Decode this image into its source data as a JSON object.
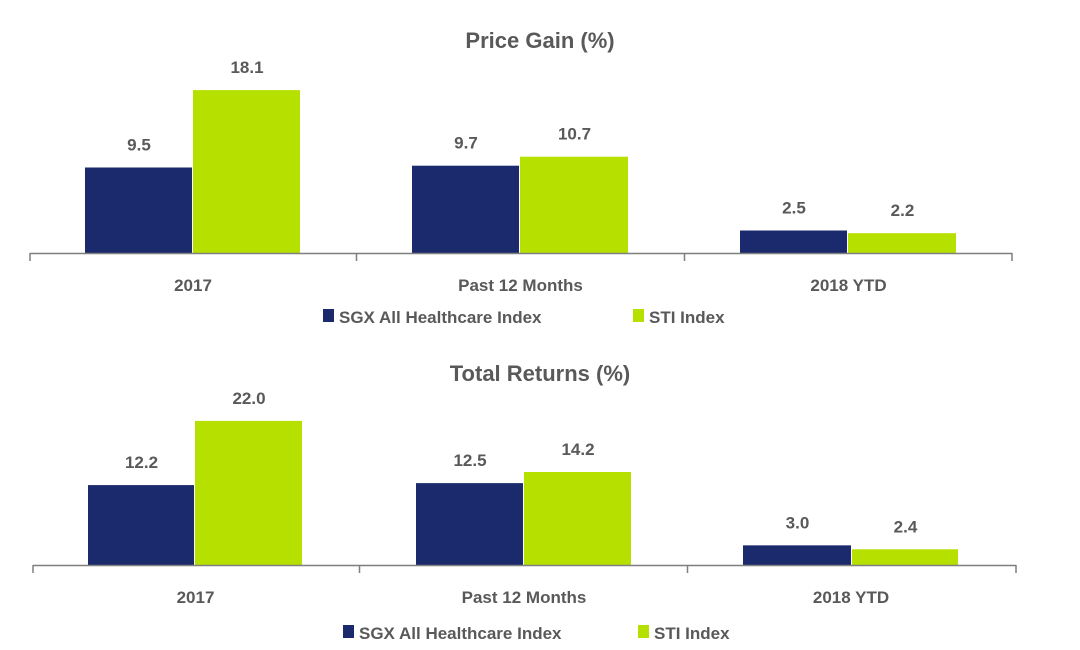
{
  "colors": {
    "series1": "#1a2a6c",
    "series2": "#b5e000",
    "text": "#595959",
    "axis": "#7f7f7f"
  },
  "chart_data": [
    {
      "type": "bar",
      "title": "Price Gain (%)",
      "categories": [
        "2017",
        "Past 12 Months",
        "2018 YTD"
      ],
      "series": [
        {
          "name": "SGX All Healthcare Index",
          "values": [
            9.5,
            9.7,
            2.5
          ],
          "labels": [
            "9.5",
            "9.7",
            "2.5"
          ]
        },
        {
          "name": "STI Index",
          "values": [
            18.1,
            10.7,
            2.2
          ],
          "labels": [
            "18.1",
            "10.7",
            "2.2"
          ]
        }
      ],
      "ylim": [
        0,
        20
      ],
      "legend": "bottom",
      "grid": false
    },
    {
      "type": "bar",
      "title": "Total Returns (%)",
      "categories": [
        "2017",
        "Past 12 Months",
        "2018 YTD"
      ],
      "series": [
        {
          "name": "SGX All Healthcare Index",
          "values": [
            12.2,
            12.5,
            3.0
          ],
          "labels": [
            "12.2",
            "12.5",
            "3.0"
          ]
        },
        {
          "name": "STI Index",
          "values": [
            22.0,
            14.2,
            2.4
          ],
          "labels": [
            "22.0",
            "14.2",
            "2.4"
          ]
        }
      ],
      "ylim": [
        0,
        24
      ],
      "legend": "bottom",
      "grid": false
    }
  ]
}
